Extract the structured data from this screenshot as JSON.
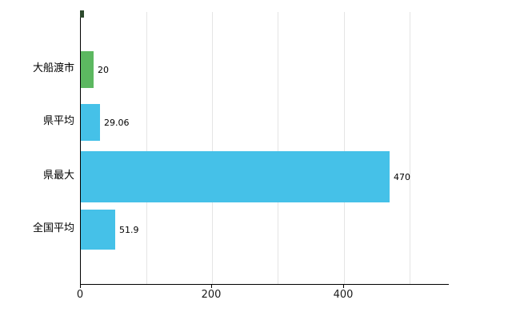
{
  "chart_data": {
    "type": "bar",
    "orientation": "horizontal",
    "title": "",
    "xlabel": "",
    "ylabel": "",
    "categories": [
      "大船渡市",
      "県平均",
      "県最大",
      "全国平均"
    ],
    "values": [
      20,
      29.06,
      470,
      51.9
    ],
    "value_labels": [
      "20",
      "29.06",
      "470",
      "51.9"
    ],
    "bar_colors": [
      "#5cb860",
      "#45c1e8",
      "#45c1e8",
      "#45c1e8"
    ],
    "xlim": [
      0,
      560
    ],
    "x_ticks": [
      0,
      200,
      400
    ],
    "x_tick_labels": [
      "0",
      "200",
      "400"
    ],
    "gridlines": [
      0,
      100,
      200,
      300,
      400,
      500
    ],
    "grid": true,
    "legend_position": "none"
  },
  "colors": {
    "background": "#ffffff",
    "grid": "#e4e4e4",
    "axis": "#000000",
    "highlight_green": "#5cb860",
    "bar_blue": "#45c1e8",
    "text": "#000000"
  }
}
